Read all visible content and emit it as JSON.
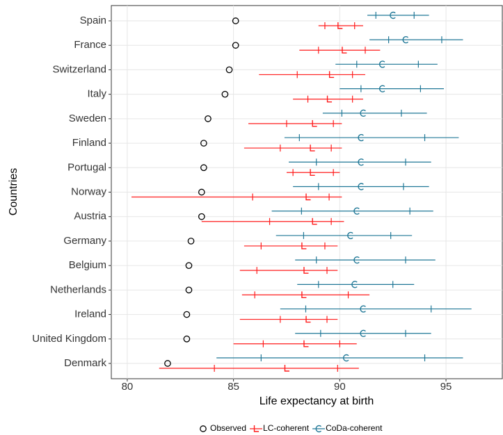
{
  "chart_data": {
    "type": "interval",
    "x_label": "Life expectancy at birth",
    "y_label": "Countries",
    "categories": [
      "Spain",
      "France",
      "Switzerland",
      "Italy",
      "Sweden",
      "Finland",
      "Portugal",
      "Norway",
      "Austria",
      "Germany",
      "Belgium",
      "Netherlands",
      "Ireland",
      "United Kingdom",
      "Denmark"
    ],
    "xlim": [
      79.25,
      97.65
    ],
    "xticks": [
      80,
      85,
      90,
      95
    ],
    "grid": true,
    "legend": "bottom",
    "series": [
      {
        "name": "Observed",
        "color": "#000000",
        "marker": "circle",
        "values": [
          85.1,
          85.1,
          84.8,
          84.6,
          83.8,
          83.6,
          83.6,
          83.5,
          83.5,
          83.0,
          82.9,
          82.9,
          82.8,
          82.8,
          81.9
        ]
      },
      {
        "name": "LC-coherent",
        "color": "#ff1a1a",
        "marker": "ell",
        "values": [
          90.0,
          90.2,
          89.6,
          89.5,
          88.8,
          88.7,
          88.7,
          88.5,
          88.8,
          88.3,
          88.4,
          88.3,
          88.5,
          88.4,
          87.5
        ],
        "lower": [
          89.0,
          88.1,
          86.2,
          87.8,
          85.7,
          85.5,
          87.5,
          80.2,
          83.5,
          85.5,
          85.3,
          85.4,
          85.3,
          85.0,
          81.5
        ],
        "upper": [
          91.1,
          91.9,
          91.2,
          91.1,
          90.1,
          90.1,
          90.0,
          90.1,
          90.2,
          89.9,
          89.9,
          91.4,
          89.9,
          90.8,
          90.9
        ],
        "inner_lower": [
          89.3,
          89.0,
          88.0,
          88.5,
          87.5,
          87.2,
          87.8,
          85.9,
          86.7,
          86.3,
          86.1,
          86.0,
          87.2,
          86.4,
          84.1
        ],
        "inner_upper": [
          90.7,
          91.2,
          90.6,
          90.6,
          89.7,
          89.6,
          89.7,
          89.5,
          89.6,
          89.3,
          89.4,
          90.4,
          89.4,
          90.0,
          89.9
        ]
      },
      {
        "name": "CoDa-coherent",
        "color": "#1f7796",
        "marker": "arc",
        "values": [
          92.5,
          93.1,
          92.0,
          92.0,
          91.1,
          91.0,
          91.0,
          91.0,
          90.8,
          90.5,
          90.8,
          90.7,
          91.1,
          91.1,
          90.3
        ],
        "lower": [
          91.3,
          91.4,
          89.8,
          90.0,
          89.2,
          87.4,
          87.6,
          87.8,
          86.8,
          87.0,
          87.9,
          88.0,
          87.2,
          87.9,
          84.2
        ],
        "upper": [
          94.2,
          95.8,
          94.6,
          94.9,
          94.1,
          95.6,
          94.3,
          94.2,
          94.4,
          93.4,
          94.5,
          93.5,
          96.2,
          94.3,
          95.8
        ],
        "inner_lower": [
          91.7,
          92.3,
          90.8,
          91.0,
          90.1,
          88.1,
          88.9,
          89.0,
          88.2,
          88.3,
          88.9,
          89.0,
          88.4,
          89.1,
          86.3
        ],
        "inner_upper": [
          93.5,
          94.8,
          93.7,
          93.8,
          92.9,
          94.0,
          93.1,
          93.0,
          93.3,
          92.4,
          93.1,
          92.5,
          94.3,
          93.1,
          94.0
        ]
      }
    ]
  }
}
